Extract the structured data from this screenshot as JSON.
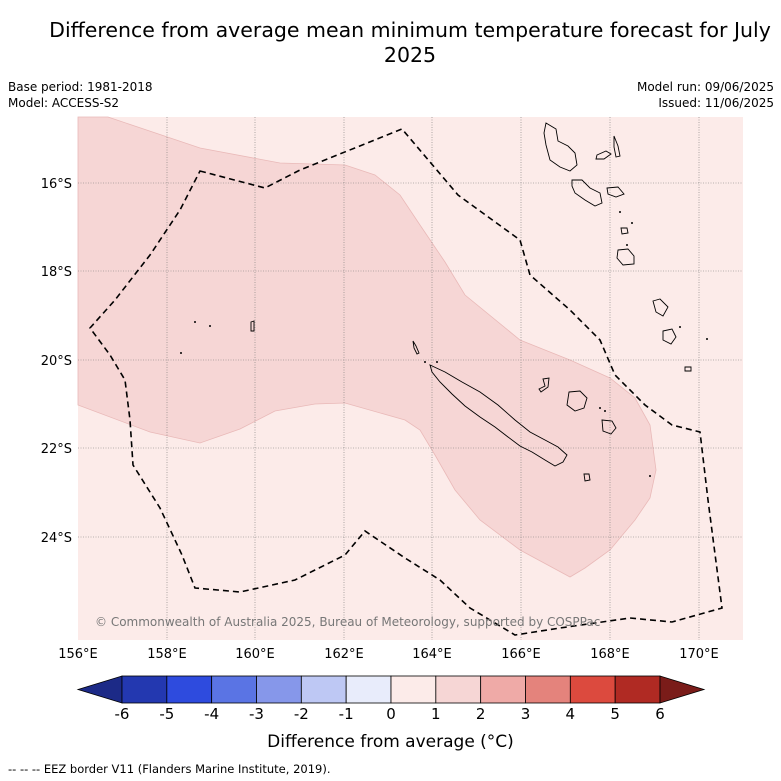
{
  "title": "Difference from average mean minimum temperature forecast for July 2025",
  "base_period": "Base period: 1981-2018",
  "model": "Model: ACCESS-S2",
  "model_run": "Model run: 09/06/2025",
  "issued": "Issued: 11/06/2025",
  "copyright": "© Commonwealth of Australia 2025, Bureau of Meteorology, supported by COSPPac",
  "lat_labels": [
    "16°S",
    "18°S",
    "20°S",
    "22°S",
    "24°S"
  ],
  "lon_labels": [
    "156°E",
    "158°E",
    "160°E",
    "162°E",
    "164°E",
    "166°E",
    "168°E",
    "170°E"
  ],
  "colorbar": {
    "ticks": [
      "-6",
      "-5",
      "-4",
      "-3",
      "-2",
      "-1",
      "0",
      "1",
      "2",
      "3",
      "4",
      "5",
      "6"
    ],
    "colors": [
      "#1c2a87",
      "#2338b0",
      "#2e4bde",
      "#5a74e4",
      "#8697ea",
      "#bec8f4",
      "#e8ecfb",
      "#fcebe9",
      "#f6d6d5",
      "#efaaa7",
      "#e4837c",
      "#dc4a3e",
      "#b02a23",
      "#7a1c19"
    ],
    "label": "Difference from average (°C)"
  },
  "legend_note": "-- -- -- EEZ border V11 (Flanders Marine Institute, 2019).",
  "map": {
    "lon_range": [
      156,
      171
    ],
    "lat_range": [
      -14.5,
      -26.3
    ],
    "background_category": "0 to 1",
    "region_category": "1 to 2"
  }
}
